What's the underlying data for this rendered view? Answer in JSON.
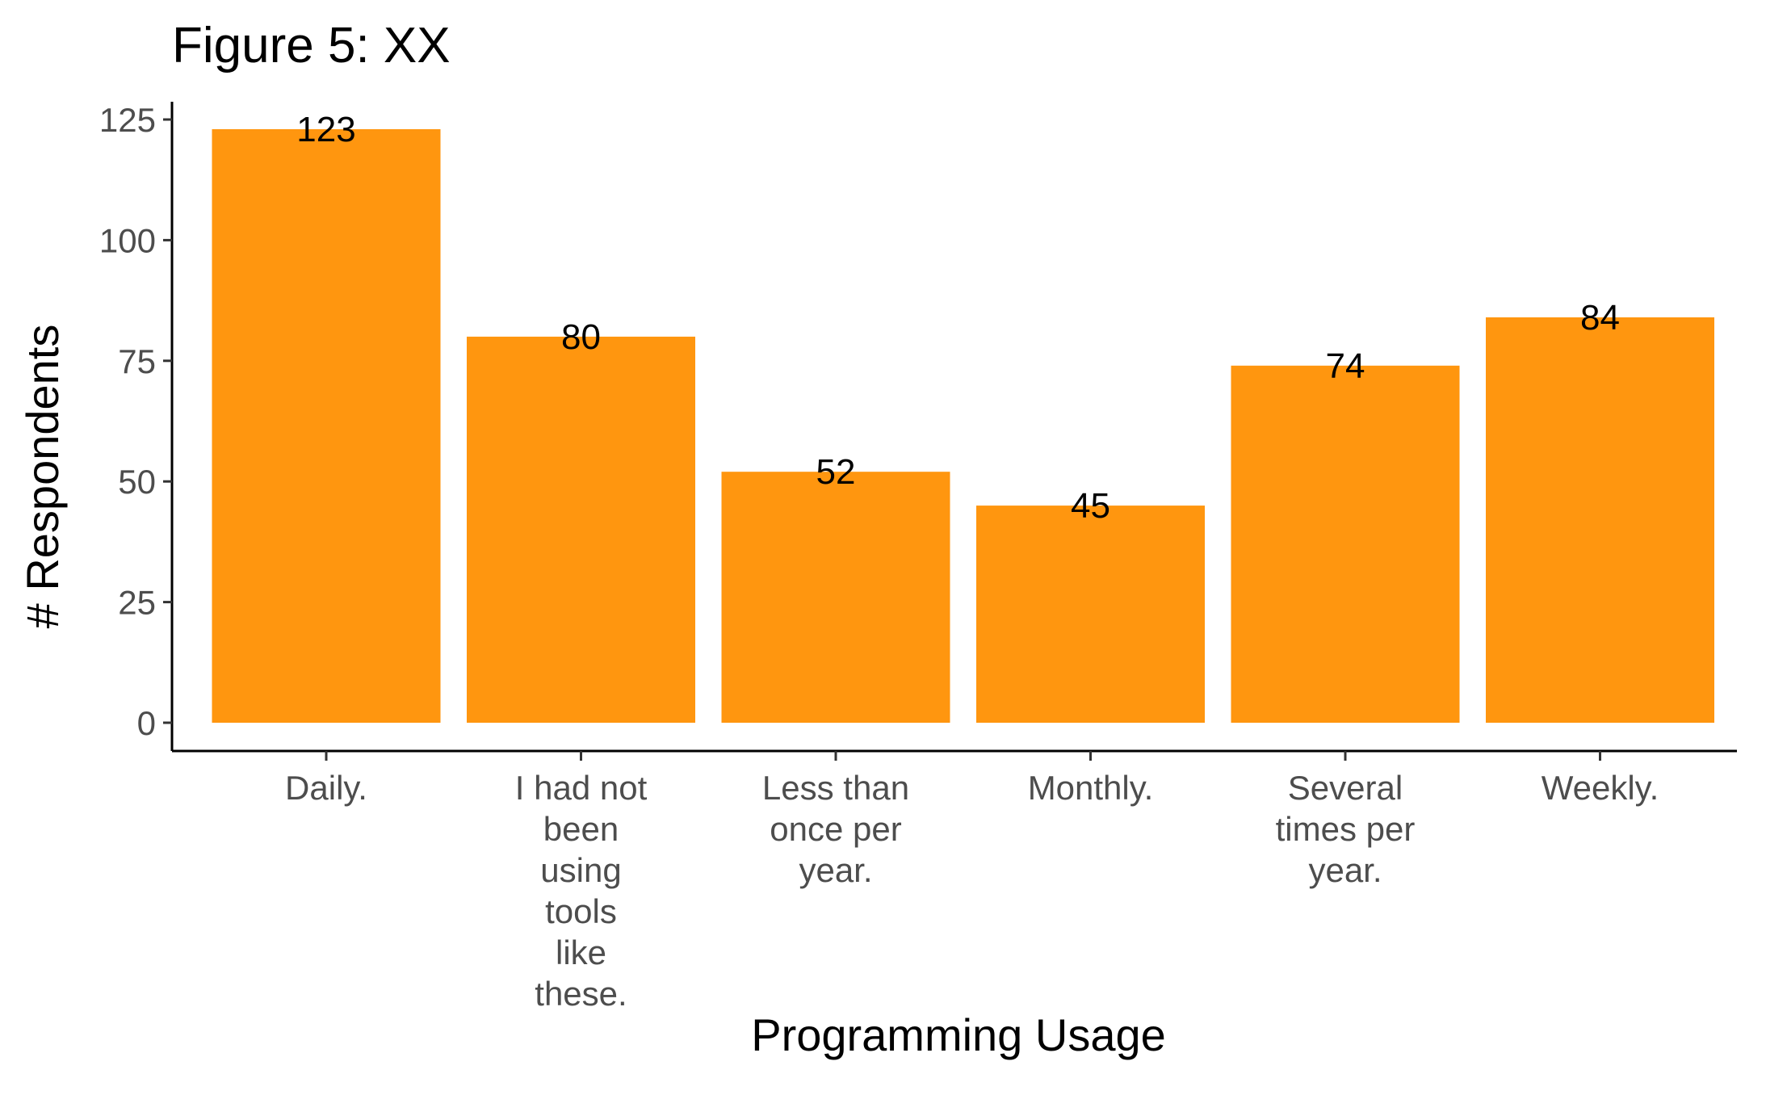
{
  "chart_data": {
    "type": "bar",
    "title": "Figure 5: XX",
    "xlabel": "Programming Usage",
    "ylabel": "# Respondents",
    "categories": [
      "Daily.",
      "I had not been using tools like these.",
      "Less than once per year.",
      "Monthly.",
      "Several times per year.",
      "Weekly."
    ],
    "category_lines": [
      [
        "Daily."
      ],
      [
        "I had not",
        "been",
        "using",
        "tools",
        "like",
        "these."
      ],
      [
        "Less than",
        "once per",
        "year."
      ],
      [
        "Monthly."
      ],
      [
        "Several",
        "times per",
        "year."
      ],
      [
        "Weekly."
      ]
    ],
    "values": [
      123,
      80,
      52,
      45,
      74,
      84
    ],
    "ylim": [
      0,
      125
    ],
    "yticks": [
      0,
      25,
      50,
      75,
      100,
      125
    ],
    "ytick_labels": [
      "0",
      "25",
      "50",
      "75",
      "100",
      "125"
    ],
    "grid": false,
    "legend": "none",
    "bar_color": "#FF960F",
    "axis_color": "#000000",
    "tick_label_color": "#4D4D4D"
  }
}
